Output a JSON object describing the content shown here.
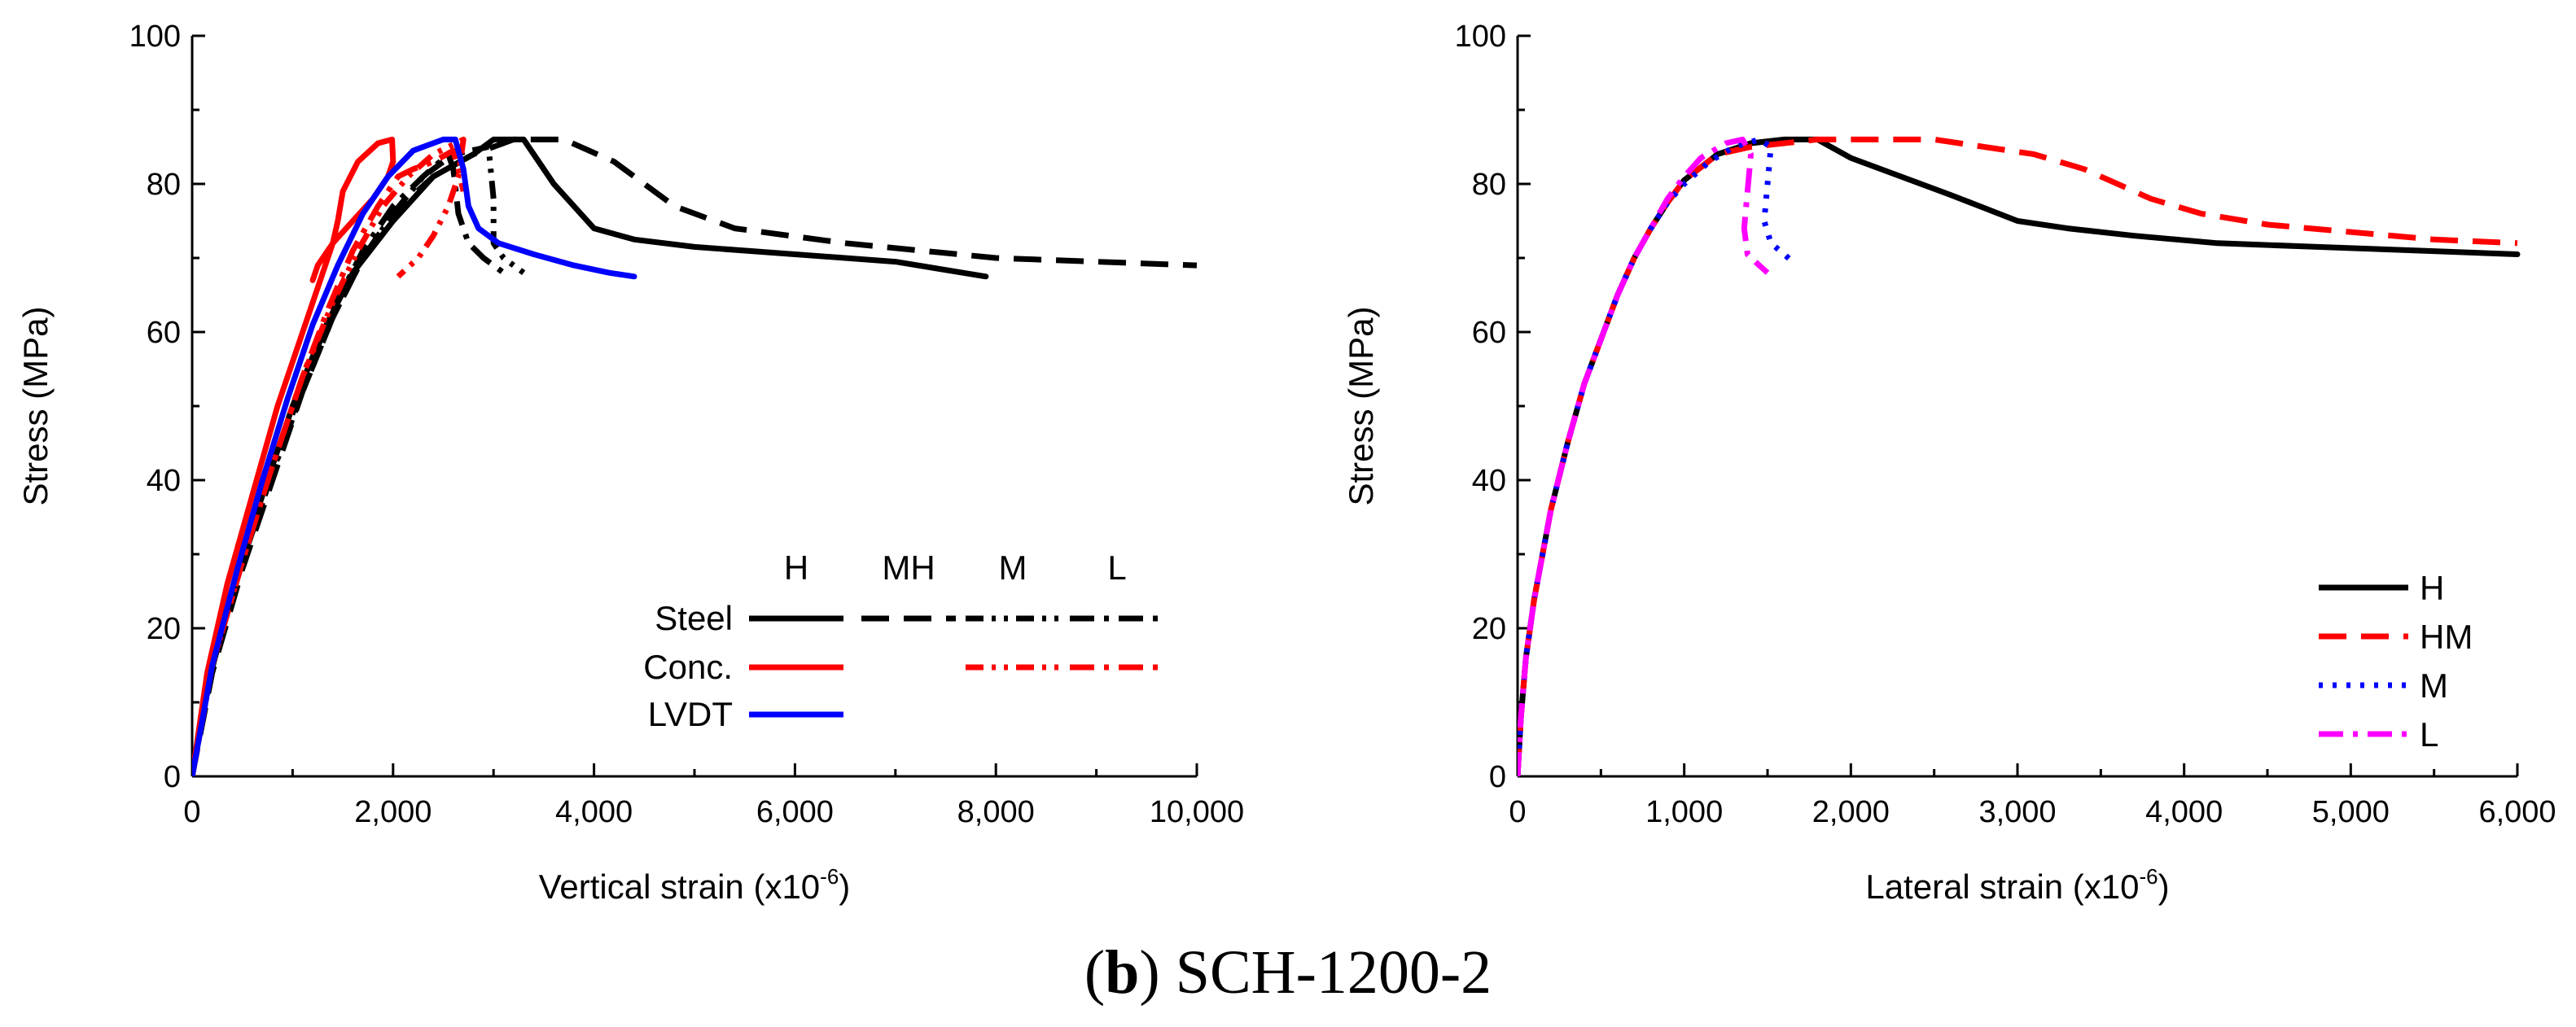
{
  "caption": {
    "label": "b",
    "title": "SCH-1200-2"
  },
  "colors": {
    "black": "#000000",
    "red": "#ff0000",
    "blue": "#0000ff",
    "magenta": "#ff00ff"
  },
  "chart_data": [
    {
      "type": "line",
      "xlabel": "Vertical strain (x10",
      "xlabel_sup": "-6",
      "xlabel_close": ")",
      "ylabel": "Stress (MPa)",
      "xlim": [
        0,
        10000
      ],
      "ylim": [
        0,
        100
      ],
      "xticks": [
        "0",
        "2,000",
        "4,000",
        "6,000",
        "8,000",
        "10,000"
      ],
      "yticks": [
        "0",
        "20",
        "40",
        "60",
        "80",
        "100"
      ],
      "legend": {
        "placement": "bottom-right",
        "columns": [
          "H",
          "MH",
          "M",
          "L"
        ],
        "rows": [
          "Steel",
          "Conc.",
          "LVDT"
        ]
      },
      "series": [
        {
          "name": "Steel H",
          "color": "#000000",
          "dash": "solid",
          "points": [
            [
              0,
              0
            ],
            [
              150,
              12
            ],
            [
              400,
              25
            ],
            [
              700,
              38
            ],
            [
              1000,
              50
            ],
            [
              1300,
              60
            ],
            [
              1600,
              68
            ],
            [
              2000,
              75
            ],
            [
              2400,
              81
            ],
            [
              2800,
              84
            ],
            [
              3000,
              86
            ],
            [
              3300,
              86
            ],
            [
              3600,
              80
            ],
            [
              4000,
              74
            ],
            [
              4400,
              72.5
            ],
            [
              5000,
              71.5
            ],
            [
              6000,
              70.5
            ],
            [
              7000,
              69.5
            ],
            [
              7900,
              67.5
            ]
          ]
        },
        {
          "name": "Steel MH",
          "color": "#000000",
          "dash": "dash",
          "points": [
            [
              0,
              0
            ],
            [
              200,
              14
            ],
            [
              500,
              28
            ],
            [
              800,
              40
            ],
            [
              1100,
              52
            ],
            [
              1400,
              62
            ],
            [
              1700,
              70
            ],
            [
              2000,
              76
            ],
            [
              2400,
              81
            ],
            [
              2800,
              84
            ],
            [
              3200,
              86
            ],
            [
              3700,
              86
            ],
            [
              4200,
              83
            ],
            [
              4800,
              77
            ],
            [
              5400,
              74
            ],
            [
              6500,
              72
            ],
            [
              8000,
              70
            ],
            [
              9000,
              69.5
            ],
            [
              10000,
              69
            ]
          ]
        },
        {
          "name": "Steel M",
          "color": "#000000",
          "dash": "dashdotdot",
          "points": [
            [
              0,
              0
            ],
            [
              200,
              15
            ],
            [
              500,
              29
            ],
            [
              800,
              41
            ],
            [
              1100,
              52
            ],
            [
              1400,
              62
            ],
            [
              1700,
              70
            ],
            [
              2000,
              76
            ],
            [
              2300,
              81
            ],
            [
              2600,
              84
            ],
            [
              2950,
              85
            ],
            [
              3000,
              78
            ],
            [
              3000,
              72
            ],
            [
              3100,
              70
            ],
            [
              3300,
              68
            ]
          ]
        },
        {
          "name": "Steel L",
          "color": "#000000",
          "dash": "dashdot",
          "points": [
            [
              0,
              0
            ],
            [
              200,
              15
            ],
            [
              500,
              29
            ],
            [
              800,
              41
            ],
            [
              1100,
              53
            ],
            [
              1400,
              63
            ],
            [
              1700,
              71
            ],
            [
              2000,
              77
            ],
            [
              2300,
              81
            ],
            [
              2550,
              84
            ],
            [
              2600,
              82
            ],
            [
              2650,
              76
            ],
            [
              2750,
              72
            ],
            [
              2900,
              70
            ],
            [
              3100,
              68
            ]
          ]
        },
        {
          "name": "Conc. H",
          "color": "#ff0000",
          "dash": "solid",
          "points": [
            [
              0,
              0
            ],
            [
              150,
              14
            ],
            [
              350,
              26
            ],
            [
              600,
              38
            ],
            [
              850,
              50
            ],
            [
              1050,
              58
            ],
            [
              1250,
              66
            ],
            [
              1400,
              72
            ],
            [
              1450,
              75
            ],
            [
              1500,
              79
            ],
            [
              1650,
              83
            ],
            [
              1850,
              85.5
            ],
            [
              1990,
              86
            ],
            [
              2000,
              83
            ],
            [
              1950,
              81
            ],
            [
              1800,
              78
            ],
            [
              1600,
              75
            ],
            [
              1400,
              72
            ],
            [
              1250,
              69
            ],
            [
              1200,
              67
            ]
          ]
        },
        {
          "name": "Conc. M",
          "color": "#ff0000",
          "dash": "dashdotdot",
          "points": [
            [
              0,
              0
            ],
            [
              200,
              15
            ],
            [
              500,
              29
            ],
            [
              800,
              42
            ],
            [
              1100,
              54
            ],
            [
              1400,
              64
            ],
            [
              1650,
              71
            ],
            [
              1900,
              77
            ],
            [
              2150,
              81
            ],
            [
              2400,
              84
            ],
            [
              2700,
              86
            ],
            [
              2650,
              81
            ],
            [
              2550,
              77
            ],
            [
              2400,
              73
            ],
            [
              2250,
              70
            ],
            [
              2050,
              67.5
            ]
          ]
        },
        {
          "name": "Conc. L",
          "color": "#ff0000",
          "dash": "dashdot",
          "points": [
            [
              0,
              0
            ],
            [
              200,
              15
            ],
            [
              500,
              29
            ],
            [
              800,
              42
            ],
            [
              1100,
              54
            ],
            [
              1350,
              63
            ],
            [
              1600,
              71
            ],
            [
              1850,
              77
            ],
            [
              2050,
              81
            ],
            [
              2200,
              82
            ],
            [
              2400,
              83
            ],
            [
              2600,
              84.5
            ],
            [
              2650,
              82
            ],
            [
              2700,
              79
            ]
          ]
        },
        {
          "name": "LVDT H",
          "color": "#0000ff",
          "dash": "solid",
          "points": [
            [
              0,
              0
            ],
            [
              200,
              15
            ],
            [
              450,
              28
            ],
            [
              700,
              40
            ],
            [
              950,
              51
            ],
            [
              1200,
              61
            ],
            [
              1450,
              69
            ],
            [
              1700,
              76
            ],
            [
              1950,
              81
            ],
            [
              2200,
              84.5
            ],
            [
              2500,
              86
            ],
            [
              2620,
              86
            ],
            [
              2700,
              82
            ],
            [
              2750,
              77
            ],
            [
              2850,
              74
            ],
            [
              3050,
              72
            ],
            [
              3400,
              70.5
            ],
            [
              3800,
              69
            ],
            [
              4150,
              68
            ],
            [
              4400,
              67.5
            ]
          ]
        }
      ]
    },
    {
      "type": "line",
      "xlabel": "Lateral strain (x10",
      "xlabel_sup": "-6",
      "xlabel_close": ")",
      "ylabel": "Stress (MPa)",
      "xlim": [
        0,
        6000
      ],
      "ylim": [
        0,
        100
      ],
      "xticks": [
        "0",
        "1,000",
        "2,000",
        "3,000",
        "4,000",
        "5,000",
        "6,000"
      ],
      "yticks": [
        "0",
        "20",
        "40",
        "60",
        "80",
        "100"
      ],
      "legend": {
        "placement": "bottom-right",
        "entries": [
          "H",
          "HM",
          "M",
          "L"
        ]
      },
      "series": [
        {
          "name": "H",
          "color": "#000000",
          "dash": "solid",
          "points": [
            [
              0,
              0
            ],
            [
              20,
              8
            ],
            [
              50,
              16
            ],
            [
              100,
              24
            ],
            [
              200,
              36
            ],
            [
              300,
              45
            ],
            [
              400,
              53
            ],
            [
              500,
              59
            ],
            [
              600,
              65
            ],
            [
              700,
              70
            ],
            [
              800,
              74
            ],
            [
              900,
              77.5
            ],
            [
              1000,
              80.5
            ],
            [
              1200,
              84
            ],
            [
              1400,
              85.5
            ],
            [
              1600,
              86
            ],
            [
              1800,
              86
            ],
            [
              2000,
              83.5
            ],
            [
              2300,
              81
            ],
            [
              2600,
              78.5
            ],
            [
              3000,
              75
            ],
            [
              3300,
              74
            ],
            [
              3700,
              73
            ],
            [
              4200,
              72
            ],
            [
              4800,
              71.5
            ],
            [
              5400,
              71
            ],
            [
              6000,
              70.5
            ]
          ]
        },
        {
          "name": "HM",
          "color": "#ff0000",
          "dash": "dash",
          "points": [
            [
              0,
              0
            ],
            [
              20,
              8
            ],
            [
              50,
              16
            ],
            [
              100,
              24
            ],
            [
              200,
              36
            ],
            [
              300,
              45
            ],
            [
              400,
              53
            ],
            [
              500,
              59
            ],
            [
              600,
              65
            ],
            [
              700,
              70
            ],
            [
              800,
              74
            ],
            [
              900,
              77.5
            ],
            [
              1000,
              80.5
            ],
            [
              1200,
              84
            ],
            [
              1400,
              85
            ],
            [
              1600,
              85.5
            ],
            [
              1800,
              86
            ],
            [
              2100,
              86
            ],
            [
              2500,
              86
            ],
            [
              2800,
              85
            ],
            [
              3100,
              84
            ],
            [
              3400,
              82
            ],
            [
              3800,
              78
            ],
            [
              4100,
              76
            ],
            [
              4500,
              74.5
            ],
            [
              5000,
              73.5
            ],
            [
              5500,
              72.5
            ],
            [
              6000,
              72
            ]
          ]
        },
        {
          "name": "M",
          "color": "#0000ff",
          "dash": "dot",
          "points": [
            [
              0,
              0
            ],
            [
              20,
              8
            ],
            [
              50,
              16
            ],
            [
              100,
              24
            ],
            [
              200,
              36
            ],
            [
              300,
              45
            ],
            [
              400,
              53
            ],
            [
              500,
              59
            ],
            [
              600,
              65
            ],
            [
              700,
              70
            ],
            [
              800,
              74
            ],
            [
              900,
              77.5
            ],
            [
              1000,
              80
            ],
            [
              1150,
              83
            ],
            [
              1300,
              85
            ],
            [
              1450,
              86
            ],
            [
              1520,
              85
            ],
            [
              1500,
              80
            ],
            [
              1480,
              75
            ],
            [
              1520,
              72
            ],
            [
              1600,
              70.5
            ],
            [
              1650,
              69.5
            ]
          ]
        },
        {
          "name": "L",
          "color": "#ff00ff",
          "dash": "dashdot",
          "points": [
            [
              0,
              0
            ],
            [
              20,
              8
            ],
            [
              50,
              16
            ],
            [
              100,
              24
            ],
            [
              200,
              36
            ],
            [
              300,
              45
            ],
            [
              400,
              53
            ],
            [
              500,
              59
            ],
            [
              600,
              65
            ],
            [
              700,
              70
            ],
            [
              800,
              74
            ],
            [
              900,
              78
            ],
            [
              1000,
              81
            ],
            [
              1100,
              83.5
            ],
            [
              1250,
              85.5
            ],
            [
              1350,
              86
            ],
            [
              1400,
              84
            ],
            [
              1380,
              79
            ],
            [
              1360,
              74
            ],
            [
              1380,
              70.5
            ],
            [
              1450,
              69
            ],
            [
              1500,
              68
            ]
          ]
        }
      ]
    }
  ]
}
